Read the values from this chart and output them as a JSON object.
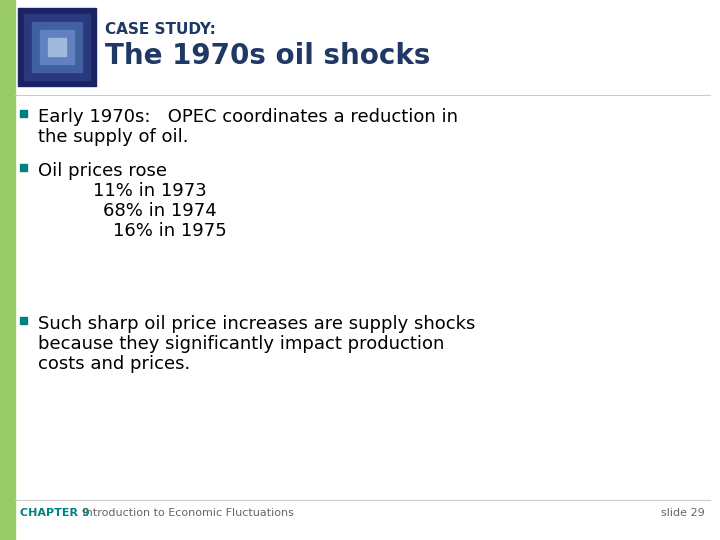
{
  "bg_color": "#ffffff",
  "left_bar_color": "#99cc66",
  "title_line1": "CASE STUDY:",
  "title_line2": "The 1970s oil shocks",
  "title_color": "#1f3864",
  "title_line1_size": 11,
  "title_line2_size": 20,
  "bullet_color": "#008080",
  "body_color": "#000000",
  "body_size": 13,
  "bullet1_line1": "Early 1970s:   OPEC coordinates a reduction in",
  "bullet1_line2": "the supply of oil.",
  "bullet2_line1": "Oil prices rose",
  "sub_items": [
    "11% in 1973",
    "68% in 1974",
    "16% in 1975"
  ],
  "sub_indents": [
    55,
    65,
    75
  ],
  "bullet3_line1": "Such sharp oil price increases are supply shocks",
  "bullet3_line2": "because they significantly impact production",
  "bullet3_line3": "costs and prices.",
  "footer_left_bold": "CHAPTER 9",
  "footer_left_normal": "   Introduction to Economic Fluctuations",
  "footer_right": "slide 29",
  "footer_color_bold": "#008080",
  "footer_color_normal": "#666666",
  "footer_size": 8,
  "image_box_color": "#1a2f6b"
}
